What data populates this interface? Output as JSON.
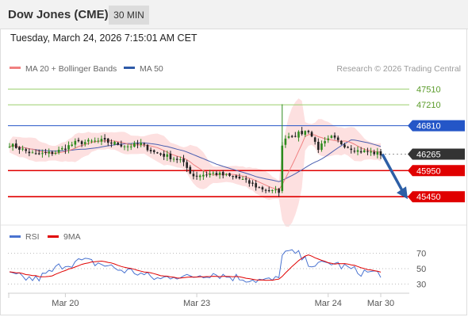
{
  "header": {
    "instrument": "Dow Jones (CME)",
    "interval": "30 MIN",
    "timestamp": "Tuesday, March 24, 2026 7:15:01 AM CET"
  },
  "legend": {
    "items": [
      {
        "label": "MA 20 + Bollinger Bands",
        "color": "#f08080"
      },
      {
        "label": "MA 50",
        "color": "#2e5aa8"
      }
    ],
    "credit": "Research © 2026 Trading Central"
  },
  "rsi_legend": {
    "items": [
      {
        "label": "RSI",
        "color": "#4a73d0"
      },
      {
        "label": "9MA",
        "color": "#e00000"
      }
    ]
  },
  "colors": {
    "up": "#2e8b1e",
    "down": "#222222",
    "resistance": "#9ccf6f",
    "pivot": "#2456c7",
    "support": "#e00000",
    "last": "#333333",
    "bands_fill": "#fde0e0",
    "arrow": "#2d5fa6"
  },
  "chart_data": {
    "type": "candlestick",
    "y_range": [
      45150,
      47850
    ],
    "levels": [
      {
        "value": 47510,
        "label": "47510",
        "kind": "resistance"
      },
      {
        "value": 47210,
        "label": "47210",
        "kind": "resistance"
      },
      {
        "value": 46810,
        "label": "46810",
        "kind": "pivot"
      },
      {
        "value": 46265,
        "label": "46265",
        "kind": "last"
      },
      {
        "value": 45950,
        "label": "45950",
        "kind": "support"
      },
      {
        "value": 45450,
        "label": "45450",
        "kind": "support"
      }
    ],
    "x_labels": [
      "Mar 20",
      "Mar 23",
      "Mar 24",
      "Mar 30"
    ],
    "x_label_index": [
      17,
      57,
      97,
      113
    ],
    "candles_count": 114,
    "gap_index": 82,
    "close_points": [
      [
        0,
        46450
      ],
      [
        8,
        46250
      ],
      [
        14,
        46300
      ],
      [
        20,
        46480
      ],
      [
        28,
        46520
      ],
      [
        36,
        46420
      ],
      [
        40,
        46460
      ],
      [
        44,
        46300
      ],
      [
        52,
        46150
      ],
      [
        56,
        45850
      ],
      [
        62,
        45900
      ],
      [
        70,
        45800
      ],
      [
        76,
        45620
      ],
      [
        80,
        45550
      ],
      [
        82,
        45560
      ],
      [
        83,
        46400
      ],
      [
        84,
        46600
      ],
      [
        88,
        46650
      ],
      [
        91,
        46720
      ],
      [
        94,
        46380
      ],
      [
        98,
        46580
      ],
      [
        102,
        46440
      ],
      [
        106,
        46330
      ],
      [
        110,
        46300
      ],
      [
        113,
        46265
      ]
    ],
    "forecast": {
      "from": 46265,
      "to": 45450
    },
    "rsi": {
      "levels": [
        70,
        50,
        30
      ],
      "y_range": [
        20,
        80
      ],
      "points": [
        [
          0,
          42
        ],
        [
          4,
          38
        ],
        [
          8,
          36
        ],
        [
          12,
          44
        ],
        [
          16,
          55
        ],
        [
          22,
          60
        ],
        [
          28,
          56
        ],
        [
          34,
          48
        ],
        [
          38,
          46
        ],
        [
          42,
          40
        ],
        [
          46,
          36
        ],
        [
          50,
          42
        ],
        [
          54,
          38
        ],
        [
          58,
          42
        ],
        [
          62,
          44
        ],
        [
          66,
          40
        ],
        [
          70,
          38
        ],
        [
          74,
          36
        ],
        [
          78,
          34
        ],
        [
          82,
          36
        ],
        [
          83,
          72
        ],
        [
          86,
          70
        ],
        [
          88,
          68
        ],
        [
          90,
          60
        ],
        [
          94,
          54
        ],
        [
          98,
          58
        ],
        [
          102,
          52
        ],
        [
          106,
          46
        ],
        [
          110,
          45
        ],
        [
          113,
          44
        ]
      ]
    }
  }
}
